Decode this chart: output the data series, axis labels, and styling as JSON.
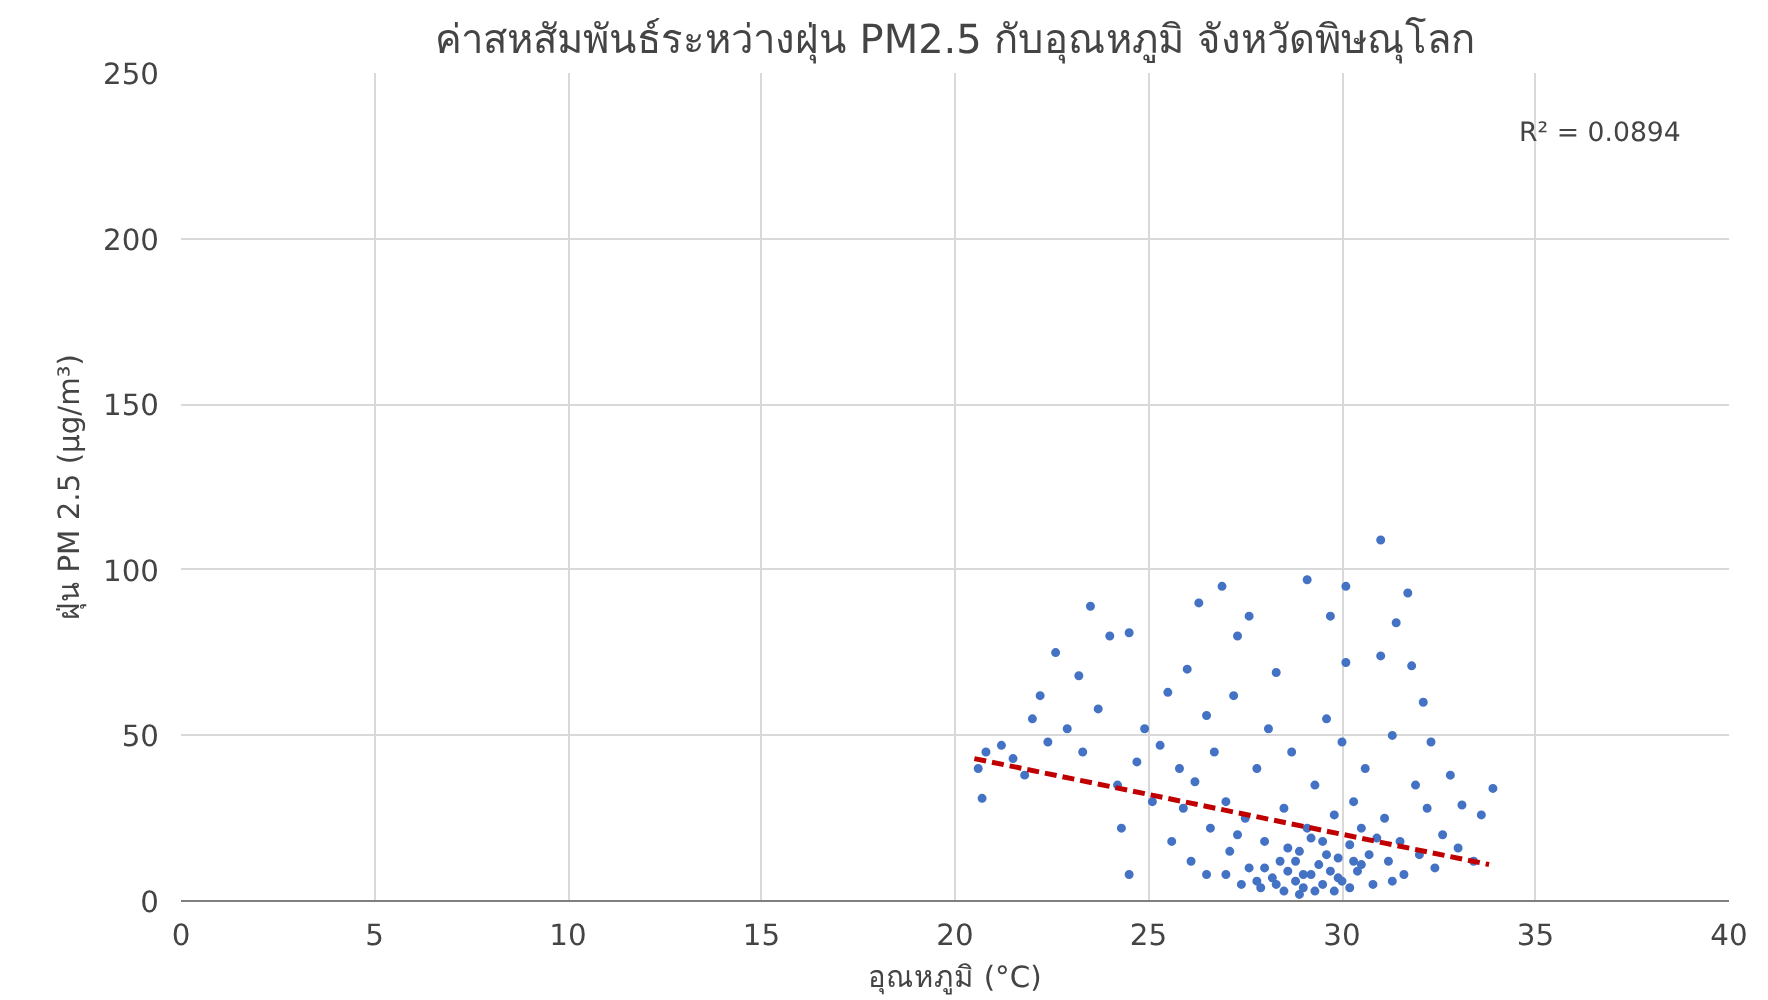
{
  "chart_data": {
    "type": "scatter",
    "title": "ค่าสหสัมพันธ์ระหว่างฝุ่น PM2.5 กับอุณหภูมิ จังหวัดพิษณุโลก",
    "xlabel": "อุณหภูมิ (°C)",
    "ylabel": "ฝุ่น PM 2.5 (µg/m³)",
    "xlim": [
      0,
      40
    ],
    "xticks": [
      0,
      5,
      10,
      15,
      20,
      25,
      30,
      35,
      40
    ],
    "ylim": [
      0,
      250
    ],
    "yticks": [
      0,
      50,
      100,
      150,
      200,
      250
    ],
    "grid": true,
    "marker": "circle",
    "annotations": [
      "R² = 0.0894"
    ],
    "series": [
      {
        "color": "#4472c4",
        "x": [
          20.6,
          20.7,
          20.8,
          21.2,
          21.5,
          21.8,
          22.0,
          22.2,
          22.4,
          22.6,
          22.9,
          23.2,
          23.3,
          23.5,
          23.7,
          24.0,
          24.2,
          24.5,
          24.3,
          24.5,
          24.7,
          24.9,
          25.1,
          25.3,
          25.5,
          25.6,
          25.8,
          25.9,
          26.0,
          26.1,
          26.2,
          26.3,
          26.5,
          26.6,
          26.7,
          26.9,
          27.0,
          27.0,
          27.1,
          27.2,
          27.3,
          27.4,
          27.5,
          27.6,
          27.6,
          27.8,
          27.9,
          28.0,
          28.1,
          28.2,
          28.3,
          28.4,
          28.5,
          28.5,
          28.6,
          28.7,
          28.8,
          28.9,
          29.0,
          29.1,
          29.1,
          29.2,
          29.3,
          29.4,
          29.5,
          29.5,
          29.6,
          29.7,
          29.7,
          29.8,
          29.9,
          30.0,
          30.0,
          30.1,
          30.1,
          30.2,
          30.3,
          30.4,
          30.5,
          30.6,
          30.7,
          30.8,
          31.0,
          31.0,
          31.1,
          31.2,
          31.3,
          31.4,
          31.5,
          31.6,
          31.7,
          31.8,
          31.9,
          32.0,
          32.1,
          32.2,
          32.3,
          32.4,
          32.6,
          32.8,
          33.0,
          33.1,
          33.4,
          33.9,
          33.6,
          28.0,
          28.3,
          28.8,
          29.0,
          29.3,
          29.6,
          29.9,
          30.2,
          30.5,
          27.8,
          28.6,
          29.2,
          30.3,
          27.3,
          26.5,
          29.8,
          28.9,
          30.9,
          31.3
        ],
        "values": [
          40,
          31,
          45,
          47,
          43,
          38,
          55,
          62,
          48,
          75,
          52,
          68,
          45,
          89,
          58,
          80,
          35,
          81,
          22,
          8,
          42,
          52,
          30,
          47,
          63,
          18,
          40,
          28,
          70,
          12,
          36,
          90,
          56,
          22,
          45,
          95,
          8,
          30,
          15,
          62,
          80,
          5,
          25,
          86,
          10,
          40,
          4,
          18,
          52,
          7,
          69,
          12,
          3,
          28,
          9,
          45,
          6,
          15,
          4,
          97,
          22,
          8,
          35,
          11,
          5,
          18,
          55,
          86,
          9,
          26,
          13,
          6,
          48,
          95,
          72,
          17,
          30,
          9,
          22,
          40,
          14,
          5,
          109,
          74,
          25,
          12,
          50,
          84,
          18,
          8,
          93,
          71,
          35,
          14,
          60,
          28,
          48,
          10,
          20,
          38,
          16,
          29,
          12,
          34,
          26,
          10,
          5,
          12,
          8,
          3,
          14,
          7,
          4,
          11,
          6,
          16,
          19,
          12,
          20,
          8,
          3,
          2,
          19,
          6
        ]
      },
      {
        "type": "line",
        "color": "#c00000",
        "line_style": "dashed",
        "marker": "none",
        "x": [
          20.5,
          33.8
        ],
        "values": [
          43,
          11
        ]
      }
    ]
  }
}
